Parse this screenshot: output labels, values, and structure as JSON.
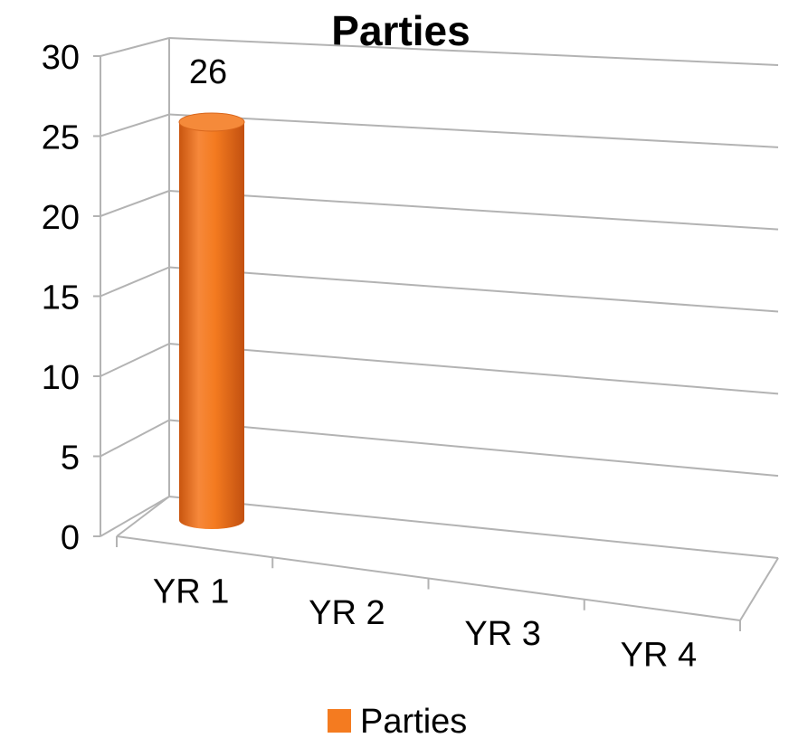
{
  "chart_data": {
    "type": "bar",
    "title": "Parties",
    "categories": [
      "YR 1",
      "YR 2",
      "YR 3",
      "YR 4"
    ],
    "series": [
      {
        "name": "Parties",
        "values": [
          26,
          null,
          null,
          null
        ],
        "color": "#F47B20"
      }
    ],
    "data_labels": [
      "26"
    ],
    "ylim": [
      0,
      30
    ],
    "yticks": [
      "0",
      "5",
      "10",
      "15",
      "20",
      "25",
      "30"
    ],
    "grid": true,
    "legend": "bottom"
  }
}
